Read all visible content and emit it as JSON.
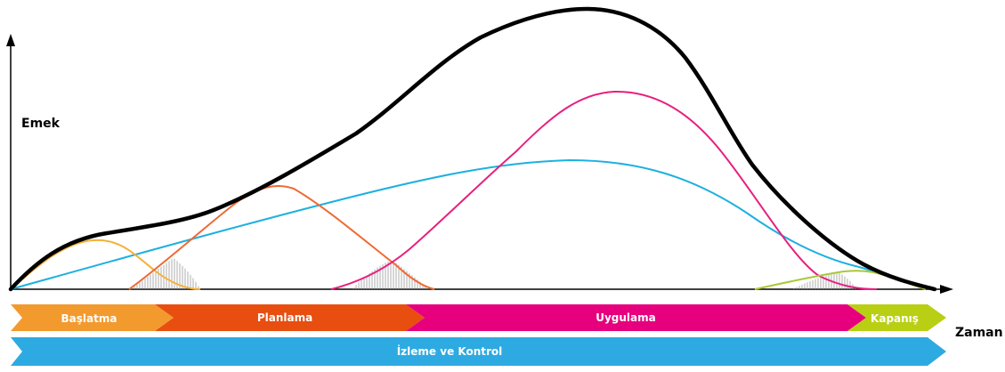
{
  "axes": {
    "y_label": "Emek",
    "x_label": "Zaman"
  },
  "phases": [
    {
      "key": "baslatma",
      "label": "Başlatma",
      "color": "#F39A2E"
    },
    {
      "key": "planlama",
      "label": "Planlama",
      "color": "#E84E10"
    },
    {
      "key": "uygulama",
      "label": "Uygulama",
      "color": "#E6007E"
    },
    {
      "key": "kapanis",
      "label": "Kapanış",
      "color": "#B9CF13"
    }
  ],
  "monitoring_bar": {
    "label": "İzleme ve Kontrol",
    "color": "#2DAAE1"
  },
  "curve_colors": {
    "total": "#000000",
    "baslatma": "#F4B13A",
    "planlama": "#EE6A34",
    "uygulama": "#E6207F",
    "izleme": "#1EB0E0",
    "kapanis": "#A9C83A"
  }
}
